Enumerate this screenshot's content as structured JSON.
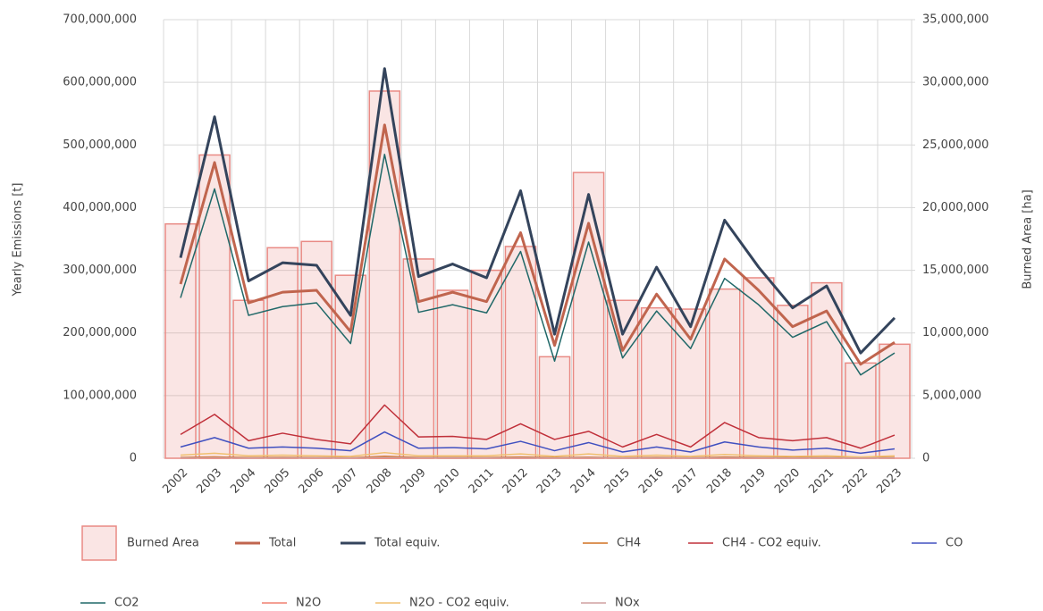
{
  "chart_data": {
    "type": "combo",
    "ylabel": "Yearly Emissions [t]",
    "y2label": "Burned Area [ha]",
    "categories": [
      "2002",
      "2003",
      "2004",
      "2005",
      "2006",
      "2007",
      "2008",
      "2009",
      "2010",
      "2011",
      "2012",
      "2013",
      "2014",
      "2015",
      "2016",
      "2017",
      "2018",
      "2019",
      "2020",
      "2021",
      "2022",
      "2023"
    ],
    "ylim": [
      0,
      700000000
    ],
    "yticks": [
      0,
      {
        "value": 100000000,
        "label": "100,000,000"
      },
      {
        "value": 200000000,
        "label": "200,000,000"
      },
      {
        "value": 300000000,
        "label": "300,000,000"
      },
      {
        "value": 400000000,
        "label": "400,000,000"
      },
      {
        "value": 500000000,
        "label": "500,000,000"
      },
      {
        "value": 600000000,
        "label": "600,000,000"
      },
      {
        "value": 700000000,
        "label": "700,000,000"
      }
    ],
    "y2lim": [
      0,
      35000000
    ],
    "y2ticks": [
      0,
      {
        "value": 5000000,
        "label": "5,000,000"
      },
      {
        "value": 10000000,
        "label": "10,000,000"
      },
      {
        "value": 15000000,
        "label": "15,000,000"
      },
      {
        "value": 20000000,
        "label": "20,000,000"
      },
      {
        "value": 25000000,
        "label": "25,000,000"
      },
      {
        "value": 30000000,
        "label": "30,000,000"
      },
      {
        "value": 35000000,
        "label": "35,000,000"
      }
    ],
    "grid": true,
    "series": [
      {
        "name": "Burned Area",
        "type": "bar",
        "axis": "y2",
        "color": "#e98a84",
        "values": [
          18700000,
          24200000,
          12600000,
          16800000,
          17300000,
          14600000,
          29300000,
          15900000,
          13400000,
          15000000,
          16900000,
          8100000,
          22800000,
          12600000,
          12000000,
          11900000,
          13500000,
          14400000,
          12200000,
          14000000,
          7600000,
          9100000
        ]
      },
      {
        "name": "Total",
        "type": "line",
        "color": "#c0654e",
        "values": [
          278000000,
          472000000,
          248000000,
          265000000,
          268000000,
          202000000,
          532000000,
          250000000,
          265000000,
          250000000,
          360000000,
          180000000,
          375000000,
          172000000,
          262000000,
          190000000,
          318000000,
          268000000,
          210000000,
          235000000,
          150000000,
          185000000
        ]
      },
      {
        "name": "Total equiv.",
        "type": "line",
        "color": "#34445c",
        "values": [
          320000000,
          545000000,
          283000000,
          312000000,
          308000000,
          228000000,
          622000000,
          290000000,
          310000000,
          288000000,
          427000000,
          198000000,
          421000000,
          198000000,
          305000000,
          210000000,
          380000000,
          305000000,
          240000000,
          275000000,
          168000000,
          224000000
        ]
      },
      {
        "name": "CH4",
        "type": "line",
        "color": "#d07020",
        "values": [
          1200000,
          2100000,
          1000000,
          1400000,
          1100000,
          800000,
          3000000,
          1200000,
          1200000,
          1100000,
          2000000,
          1000000,
          1600000,
          700000,
          1400000,
          700000,
          2000000,
          1200000,
          1000000,
          1200000,
          600000,
          1300000
        ]
      },
      {
        "name": "CH4 - CO2 equiv.",
        "type": "line",
        "color": "#c0303a",
        "values": [
          38000000,
          70000000,
          28000000,
          40000000,
          30000000,
          23000000,
          85000000,
          34000000,
          35000000,
          30000000,
          55000000,
          30000000,
          43000000,
          18000000,
          38000000,
          18000000,
          57000000,
          33000000,
          28000000,
          33000000,
          16000000,
          37000000
        ]
      },
      {
        "name": "CO",
        "type": "line",
        "color": "#4050c0",
        "values": [
          18000000,
          33000000,
          16000000,
          18000000,
          16000000,
          12000000,
          42000000,
          16000000,
          17000000,
          15000000,
          27000000,
          12000000,
          25000000,
          10000000,
          18000000,
          10000000,
          26000000,
          18000000,
          13000000,
          16000000,
          8000000,
          15000000
        ]
      },
      {
        "name": "CO2",
        "type": "line",
        "color": "#206868",
        "values": [
          256000000,
          430000000,
          228000000,
          242000000,
          248000000,
          183000000,
          485000000,
          233000000,
          245000000,
          232000000,
          330000000,
          155000000,
          345000000,
          160000000,
          235000000,
          175000000,
          287000000,
          245000000,
          193000000,
          218000000,
          133000000,
          168000000
        ]
      },
      {
        "name": "N2O",
        "type": "line",
        "color": "#f08070",
        "values": [
          20000,
          35000,
          16000,
          20000,
          17000,
          13000,
          45000,
          18000,
          18000,
          16000,
          30000,
          14000,
          28000,
          11000,
          20000,
          11000,
          30000,
          18000,
          14000,
          18000,
          9000,
          17000
        ]
      },
      {
        "name": "N2O - CO2 equiv.",
        "type": "line",
        "color": "#f0c070",
        "values": [
          5000000,
          8000000,
          4000000,
          5000000,
          4000000,
          3000000,
          9000000,
          4000000,
          4000000,
          4000000,
          7000000,
          3000000,
          7000000,
          3000000,
          5000000,
          3000000,
          6000000,
          4000000,
          3000000,
          4000000,
          2000000,
          4000000
        ]
      },
      {
        "name": "NOx",
        "type": "line",
        "color": "#d0a0a0",
        "values": [
          500000,
          900000,
          400000,
          500000,
          450000,
          350000,
          1200000,
          450000,
          480000,
          430000,
          800000,
          380000,
          700000,
          300000,
          500000,
          300000,
          750000,
          480000,
          380000,
          450000,
          250000,
          450000
        ]
      }
    ]
  }
}
